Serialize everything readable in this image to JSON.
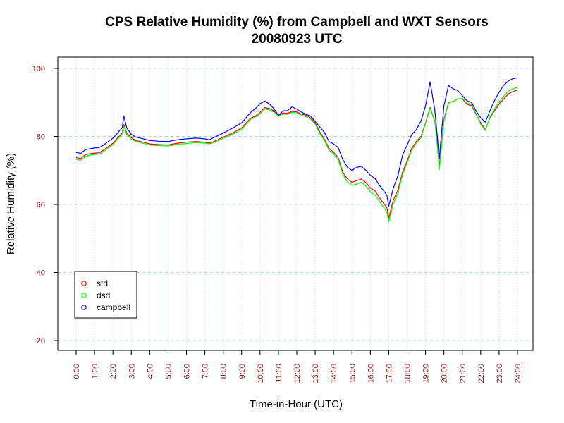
{
  "chart_data": {
    "type": "line",
    "title_line1": "CPS Relative Humidity (%) from Campbell and WXT Sensors",
    "title_line2": "20080923  UTC",
    "xlabel": "Time-in-Hour (UTC)",
    "ylabel": "Relative Humidity (%)",
    "xlim": [
      0,
      24
    ],
    "ylim": [
      17,
      103
    ],
    "grid": true,
    "legend_position": "bottom-left",
    "y_ticks": [
      20,
      40,
      60,
      80,
      100
    ],
    "x_tick_labels": [
      "0:00",
      "1:00",
      "2:00",
      "3:00",
      "4:00",
      "5:00",
      "6:00",
      "7:00",
      "8:00",
      "9:00",
      "10:00",
      "11:00",
      "12:00",
      "13:00",
      "14:00",
      "15:00",
      "16:00",
      "17:00",
      "18:00",
      "19:00",
      "20:00",
      "21:00",
      "22:00",
      "23:00",
      "24:00"
    ],
    "x": [
      0,
      0.25,
      0.5,
      0.75,
      1,
      1.25,
      1.5,
      1.75,
      2,
      2.25,
      2.5,
      2.6,
      2.75,
      3,
      3.25,
      3.5,
      4,
      4.5,
      5,
      5.5,
      6,
      6.5,
      7,
      7.25,
      7.5,
      8,
      8.5,
      9,
      9.25,
      9.5,
      9.75,
      10,
      10.25,
      10.5,
      10.75,
      11,
      11.25,
      11.5,
      11.75,
      12,
      12.25,
      12.5,
      12.75,
      13,
      13.25,
      13.5,
      13.75,
      14,
      14.25,
      14.5,
      14.75,
      15,
      15.25,
      15.5,
      15.75,
      16,
      16.25,
      16.5,
      16.75,
      16.9,
      17,
      17.25,
      17.5,
      17.75,
      18,
      18.25,
      18.5,
      18.75,
      19,
      19.25,
      19.5,
      19.6,
      19.75,
      20,
      20.25,
      20.5,
      20.75,
      21,
      21.25,
      21.5,
      21.75,
      22,
      22.25,
      22.5,
      22.75,
      23,
      23.25,
      23.5,
      23.75,
      24
    ],
    "series": [
      {
        "name": "std",
        "color": "#ff0000",
        "values": [
          73.8,
          73.5,
          74.6,
          74.9,
          75.1,
          75.2,
          76,
          77,
          78,
          79.5,
          81,
          83.5,
          81,
          79.6,
          78.8,
          78.5,
          77.8,
          77.6,
          77.5,
          78,
          78.3,
          78.5,
          78.3,
          78,
          78.5,
          79.8,
          81,
          82.5,
          84,
          85.4,
          86,
          87,
          88.5,
          88.2,
          87.5,
          86.2,
          86.9,
          86.8,
          87.4,
          87.2,
          86.6,
          86.2,
          85.5,
          84,
          81.3,
          79.2,
          76.5,
          75.3,
          73.8,
          69.5,
          67.5,
          66.5,
          67,
          67.5,
          66.5,
          64.8,
          64,
          61.9,
          60.1,
          59,
          56,
          61.3,
          64.2,
          69.5,
          72.8,
          76.5,
          78.5,
          80,
          84,
          88.5,
          84.5,
          80.5,
          71,
          85,
          90,
          90.3,
          91,
          91,
          89.5,
          89,
          86.5,
          84,
          82,
          85.5,
          87.5,
          89.5,
          91,
          92.5,
          93.2,
          93.6
        ]
      },
      {
        "name": "dsd",
        "color": "#00ff00",
        "values": [
          73.3,
          73,
          74.1,
          74.5,
          74.7,
          74.8,
          75.6,
          76.6,
          77.6,
          79.2,
          80.6,
          83,
          80.6,
          79.2,
          78.5,
          78.2,
          77.5,
          77.3,
          77.2,
          77.7,
          77.9,
          78.2,
          78,
          77.8,
          78.2,
          79.5,
          80.6,
          82.1,
          83.6,
          85.1,
          85.7,
          86.6,
          88.1,
          87.8,
          87.2,
          85.9,
          86.6,
          86.5,
          87.1,
          86.9,
          86.3,
          85.8,
          85.1,
          83.6,
          80.9,
          78.8,
          76,
          74.8,
          73.2,
          68.8,
          66.6,
          65.6,
          66,
          66.5,
          65.5,
          63.7,
          62.8,
          60.8,
          58.9,
          57.6,
          54.8,
          60.2,
          63.3,
          68.8,
          72.2,
          76,
          78,
          79.6,
          83.8,
          88.3,
          84.3,
          79.8,
          70.2,
          84.5,
          89.8,
          90.3,
          91,
          91.2,
          89.8,
          89.3,
          86.8,
          83.5,
          81.8,
          85.8,
          88,
          90.2,
          91.8,
          93.3,
          94,
          94.4
        ]
      },
      {
        "name": "campbell",
        "color": "#0000ff",
        "values": [
          75.3,
          75,
          76.1,
          76.4,
          76.6,
          76.7,
          77.5,
          78.5,
          79.5,
          81,
          82.5,
          86,
          82.5,
          80.6,
          79.8,
          79.5,
          78.8,
          78.6,
          78.5,
          79,
          79.3,
          79.5,
          79.3,
          79,
          79.7,
          81,
          82.4,
          84,
          85.6,
          87.1,
          88.2,
          89.6,
          90.4,
          89.6,
          88.2,
          86.2,
          87.5,
          87.6,
          88.7,
          88,
          87.2,
          86.5,
          86,
          84.4,
          82.8,
          81.2,
          78.5,
          77.8,
          76.7,
          73.2,
          71,
          70,
          70.9,
          71.2,
          70.1,
          68.6,
          67.6,
          65.6,
          63.8,
          62.7,
          59.5,
          64.8,
          68.5,
          74.5,
          77.5,
          80.5,
          82,
          84.5,
          89,
          96,
          88,
          82.5,
          73.5,
          89,
          95,
          94,
          93.5,
          92,
          90.5,
          90,
          87.5,
          85.5,
          84.2,
          87.5,
          90.5,
          93,
          95,
          96.3,
          97,
          97.2
        ]
      }
    ]
  }
}
